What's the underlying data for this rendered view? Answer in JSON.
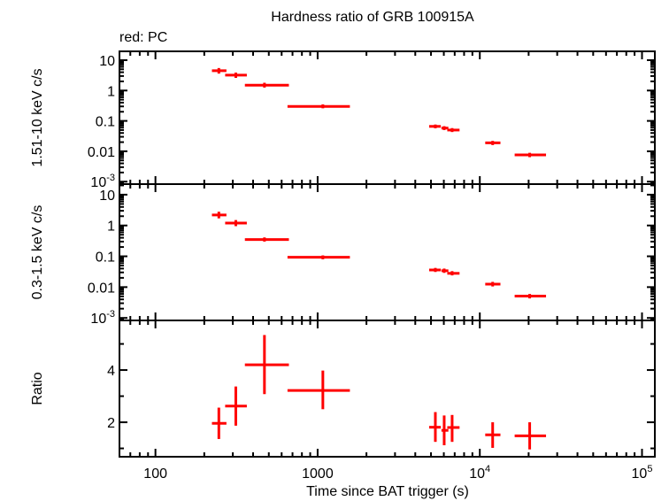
{
  "chart_data": {
    "type": "scatter",
    "title": "Hardness ratio of GRB 100915A",
    "subtitle": "red: PC",
    "xlabel": "Time since BAT trigger (s)",
    "xscale": "log",
    "xlim": [
      60,
      120000
    ],
    "xticks": [
      {
        "value": 100,
        "label": "100"
      },
      {
        "value": 1000,
        "label": "1000"
      },
      {
        "value": 10000,
        "label": "10",
        "exp": "4"
      },
      {
        "value": 100000,
        "label": "10",
        "exp": "5"
      }
    ],
    "series_color": "#ff0000",
    "x": [
      246,
      313,
      470,
      1077,
      5320,
      6030,
      6750,
      12000,
      20300
    ],
    "xerr_low": [
      223,
      269,
      356,
      652,
      4870,
      5800,
      6300,
      10800,
      16400
    ],
    "xerr_high": [
      274,
      366,
      665,
      1581,
      5750,
      6400,
      7500,
      13400,
      25600
    ],
    "panels": [
      {
        "name": "hard",
        "ylabel": "1.51-10 keV c/s",
        "yscale": "log",
        "ylim": [
          0.00083,
          19.5
        ],
        "yticks": [
          {
            "value": 10,
            "label": "10"
          },
          {
            "value": 1,
            "label": "1"
          },
          {
            "value": 0.1,
            "label": "0.1"
          },
          {
            "value": 0.01,
            "label": "0.01"
          },
          {
            "value": 0.001,
            "label": "10",
            "exp": "-3"
          }
        ],
        "y": [
          4.5,
          3.2,
          1.5,
          0.3,
          0.066,
          0.058,
          0.05,
          0.019,
          0.0076
        ],
        "yerr_low": [
          3.6,
          2.6,
          1.25,
          0.26,
          0.057,
          0.05,
          0.043,
          0.016,
          0.0064
        ],
        "yerr_high": [
          5.5,
          3.9,
          1.8,
          0.35,
          0.076,
          0.067,
          0.058,
          0.022,
          0.0089
        ]
      },
      {
        "name": "soft",
        "ylabel": "0.3-1.5 keV c/s",
        "yscale": "log",
        "ylim": [
          0.00083,
          22
        ],
        "yticks": [
          {
            "value": 10,
            "label": "10"
          },
          {
            "value": 1,
            "label": "1"
          },
          {
            "value": 0.1,
            "label": "0.1"
          },
          {
            "value": 0.01,
            "label": "0.01"
          },
          {
            "value": 0.001,
            "label": "10",
            "exp": "-3"
          }
        ],
        "y": [
          2.2,
          1.2,
          0.35,
          0.093,
          0.036,
          0.034,
          0.028,
          0.0125,
          0.0051
        ],
        "yerr_low": [
          1.7,
          0.95,
          0.3,
          0.08,
          0.031,
          0.029,
          0.024,
          0.0105,
          0.0043
        ],
        "yerr_high": [
          2.8,
          1.5,
          0.41,
          0.107,
          0.042,
          0.04,
          0.033,
          0.0148,
          0.006
        ]
      },
      {
        "name": "ratio",
        "ylabel": "Ratio",
        "yscale": "linear",
        "ylim": [
          0.68,
          5.9
        ],
        "yticks": [
          {
            "value": 2,
            "label": "2"
          },
          {
            "value": 4,
            "label": "4"
          }
        ],
        "yminor": [
          1,
          3,
          5
        ],
        "y": [
          1.96,
          2.62,
          4.2,
          3.22,
          1.81,
          1.69,
          1.8,
          1.52,
          1.48
        ],
        "yerr_low": [
          1.36,
          1.87,
          3.08,
          2.5,
          1.25,
          1.12,
          1.25,
          1.02,
          0.96
        ],
        "yerr_high": [
          2.56,
          3.37,
          5.34,
          3.98,
          2.39,
          2.26,
          2.28,
          2.0,
          2.0
        ]
      }
    ]
  }
}
